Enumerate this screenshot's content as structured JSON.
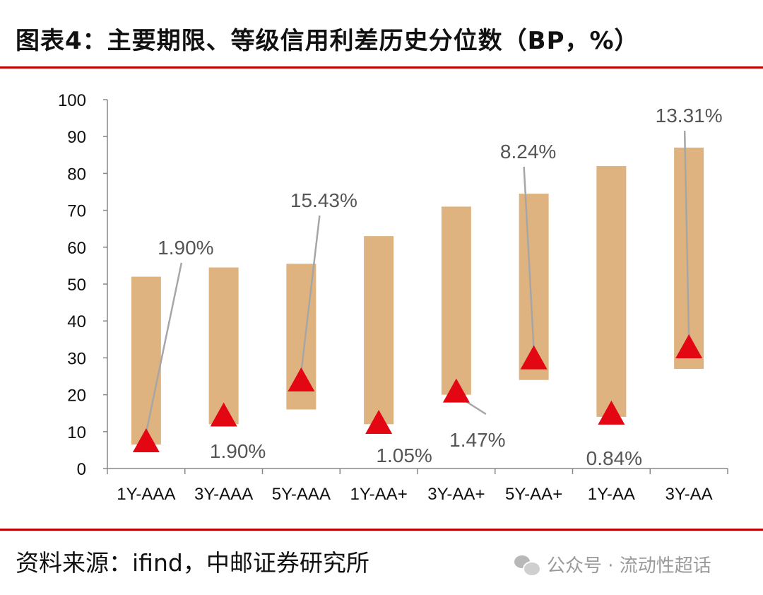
{
  "title": "图表4：主要期限、等级信用利差历史分位数（BP，%）",
  "source": "资料来源：ifind，中邮证券研究所",
  "watermark": "公众号 · 流动性超话",
  "colors": {
    "accent_rule": "#c00000",
    "range_bar": "#deb37f",
    "marker": "#e30613",
    "leader_line": "#a6a6a6",
    "label_text": "#555555"
  },
  "chart_data": {
    "type": "bar",
    "subtype": "floating-range-with-marker",
    "categories": [
      "1Y-AAA",
      "3Y-AAA",
      "5Y-AAA",
      "1Y-AA+",
      "3Y-AA+",
      "5Y-AA+",
      "1Y-AA",
      "3Y-AA"
    ],
    "series": [
      {
        "values_low": [
          6.5,
          12,
          16,
          12,
          20,
          24,
          14,
          27
        ],
        "values_high": [
          52,
          54.5,
          55.5,
          63,
          71,
          74.5,
          82,
          87
        ]
      },
      {
        "values": [
          7,
          14,
          23.5,
          12,
          20.5,
          29.5,
          14.5,
          32.5
        ]
      },
      {
        "values": [
          1.9,
          1.9,
          15.43,
          1.05,
          1.47,
          8.24,
          0.84,
          13.31
        ],
        "labels": [
          "1.90%",
          "1.90%",
          "15.43%",
          "1.05%",
          "1.47%",
          "8.24%",
          "0.84%",
          "13.31%"
        ]
      }
    ],
    "yticks": [
      "0",
      "10",
      "20",
      "30",
      "40",
      "50",
      "60",
      "70",
      "80",
      "90",
      "100"
    ],
    "ylim": [
      0,
      100
    ],
    "grid": false,
    "legend": "none",
    "xlabel": "",
    "ylabel": ""
  }
}
